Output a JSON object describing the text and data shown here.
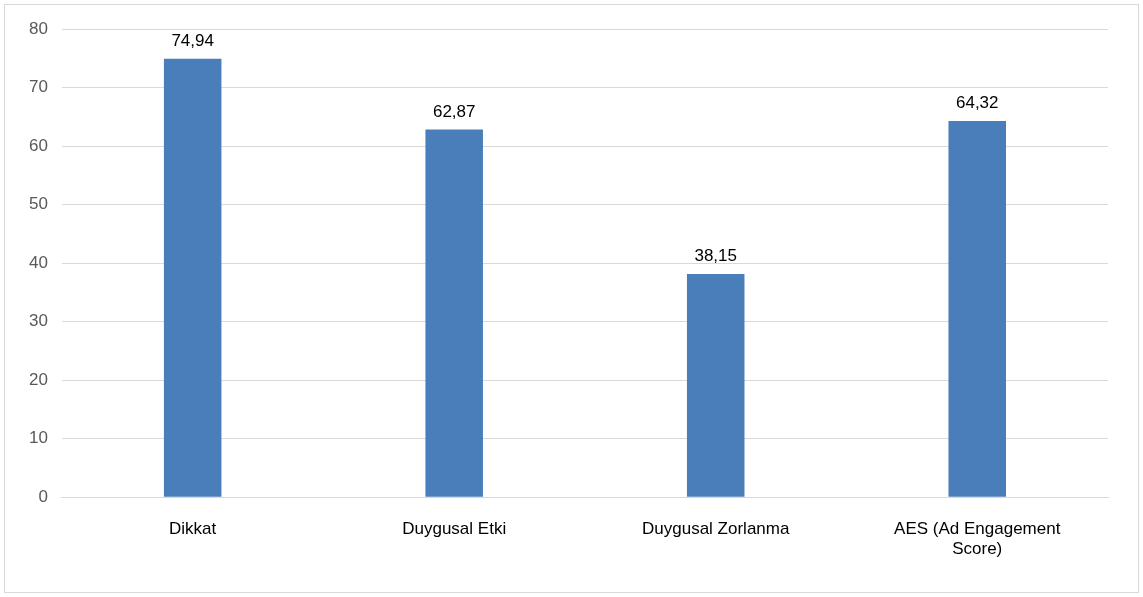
{
  "chart_data": {
    "type": "bar",
    "categories": [
      "Dikkat",
      "Duygusal Etki",
      "Duygusal Zorlanma",
      "AES (Ad Engagement Score)"
    ],
    "values": [
      74.94,
      62.87,
      38.15,
      64.32
    ],
    "value_labels": [
      "74,94",
      "62,87",
      "38,15",
      "64,32"
    ],
    "color": "#4a7ebb",
    "ylim": [
      0,
      80
    ],
    "yticks": [
      0,
      10,
      20,
      30,
      40,
      50,
      60,
      70,
      80
    ],
    "grid": "y"
  }
}
